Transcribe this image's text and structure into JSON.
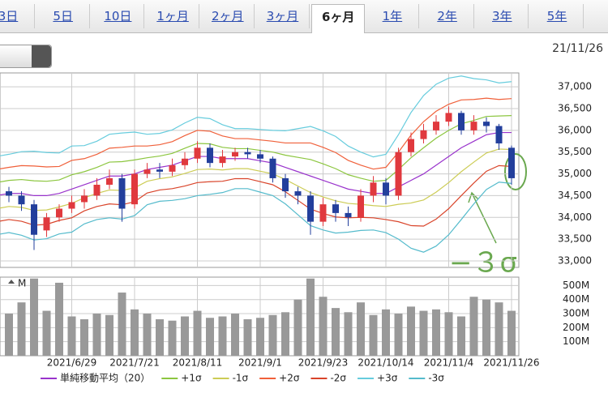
{
  "tabs": [
    "3日",
    "5日",
    "10日",
    "1ヶ月",
    "2ヶ月",
    "3ヶ月",
    "6ヶ月",
    "1年",
    "2年",
    "3年",
    "5年"
  ],
  "selected_tab": 6,
  "date": "21/11/26",
  "chart_data": {
    "type": "candlestick",
    "categories": [
      null,
      null,
      null,
      null,
      null,
      null,
      "2021/6/29",
      null,
      null,
      null,
      null,
      "2021/7/21",
      null,
      null,
      null,
      null,
      "2021/8/11",
      null,
      null,
      null,
      null,
      "2021/9/1",
      null,
      null,
      null,
      null,
      "2021/9/23",
      null,
      null,
      null,
      null,
      "2021/10/14",
      null,
      null,
      null,
      null,
      "2021/11/4",
      null,
      null,
      null,
      null,
      "2021/11/26"
    ],
    "open": [
      34500,
      34600,
      34500,
      34300,
      33700,
      34000,
      34200,
      34350,
      34500,
      34750,
      34900,
      34300,
      35000,
      35100,
      35050,
      35200,
      35350,
      35600,
      35250,
      35400,
      35500,
      35450,
      35350,
      34900,
      34600,
      34500,
      33900,
      34300,
      34100,
      34000,
      34500,
      34800,
      34500,
      35500,
      35800,
      36000,
      36200,
      36400,
      36000,
      36200,
      36100,
      35600
    ],
    "high": [
      34750,
      34700,
      34600,
      34400,
      34100,
      34300,
      34500,
      34650,
      34900,
      35100,
      35000,
      35100,
      35250,
      35250,
      35350,
      35500,
      35750,
      35700,
      35550,
      35600,
      35600,
      35550,
      35400,
      35000,
      34700,
      34600,
      34450,
      34400,
      34250,
      34650,
      34950,
      34900,
      35600,
      35950,
      36150,
      36350,
      36550,
      36450,
      36350,
      36300,
      36150,
      35650
    ],
    "low": [
      34400,
      34350,
      34150,
      33250,
      33550,
      33900,
      34100,
      34200,
      34400,
      34650,
      33900,
      34200,
      34900,
      34900,
      34950,
      35100,
      35250,
      35150,
      35150,
      35300,
      35350,
      35250,
      34800,
      34450,
      34300,
      33600,
      33800,
      33900,
      33800,
      33900,
      34350,
      34300,
      34400,
      35400,
      35700,
      35900,
      36100,
      35900,
      35900,
      35950,
      35550,
      34750
    ],
    "close": [
      34600,
      34500,
      34300,
      33600,
      34000,
      34200,
      34350,
      34500,
      34750,
      34900,
      34200,
      35000,
      35100,
      35050,
      35200,
      35350,
      35600,
      35250,
      35400,
      35500,
      35450,
      35350,
      34900,
      34600,
      34500,
      33900,
      34300,
      34100,
      34000,
      34500,
      34800,
      34500,
      35500,
      35800,
      36000,
      36200,
      36400,
      36000,
      36200,
      36100,
      35700,
      34900
    ],
    "up_color": "#e0393e",
    "down_color": "#233f9c",
    "series": [
      {
        "name": "単純移動平均（20）",
        "color": "#9933cc",
        "values": [
          34500,
          34550,
          34550,
          34500,
          34500,
          34550,
          34650,
          34750,
          34850,
          34950,
          34950,
          35000,
          35100,
          35150,
          35200,
          35300,
          35400,
          35400,
          35350,
          35350,
          35350,
          35300,
          35250,
          35150,
          35050,
          34950,
          34850,
          34750,
          34650,
          34600,
          34550,
          34550,
          34700,
          34850,
          35000,
          35200,
          35400,
          35600,
          35750,
          35900,
          35950,
          35950
        ]
      },
      {
        "name": "+1σ",
        "color": "#8cc63f",
        "values": [
          34800,
          34850,
          34870,
          34840,
          34830,
          34860,
          34980,
          35050,
          35150,
          35270,
          35280,
          35320,
          35370,
          35410,
          35470,
          35590,
          35700,
          35690,
          35610,
          35580,
          35580,
          35540,
          35500,
          35430,
          35380,
          35330,
          35230,
          35120,
          34980,
          34900,
          34830,
          34850,
          35100,
          35370,
          35600,
          35820,
          36000,
          36150,
          36230,
          36320,
          36330,
          36340
        ]
      },
      {
        "name": "-1σ",
        "color": "#cccc55",
        "values": [
          34200,
          34250,
          34230,
          34160,
          34170,
          34240,
          34320,
          34450,
          34550,
          34630,
          34620,
          34680,
          34830,
          34890,
          34930,
          35010,
          35100,
          35110,
          35090,
          35120,
          35120,
          35060,
          35000,
          34870,
          34720,
          34570,
          34470,
          34380,
          34320,
          34300,
          34270,
          34250,
          34300,
          34330,
          34400,
          34580,
          34800,
          35050,
          35270,
          35480,
          35570,
          35560
        ]
      },
      {
        "name": "+2σ",
        "color": "#f0603a",
        "values": [
          35100,
          35150,
          35190,
          35180,
          35160,
          35170,
          35310,
          35350,
          35450,
          35590,
          35610,
          35640,
          35640,
          35670,
          35740,
          35880,
          36000,
          35980,
          35870,
          35810,
          35810,
          35780,
          35750,
          35710,
          35710,
          35710,
          35610,
          35490,
          35310,
          35200,
          35110,
          35150,
          35500,
          35890,
          36200,
          36440,
          36600,
          36700,
          36710,
          36740,
          36710,
          36730
        ]
      },
      {
        "name": "-2σ",
        "color": "#d9442a",
        "values": [
          33900,
          33950,
          33910,
          33820,
          33840,
          33930,
          33990,
          34150,
          34250,
          34310,
          34290,
          34360,
          34560,
          34630,
          34660,
          34720,
          34800,
          34820,
          34830,
          34890,
          34890,
          34820,
          34750,
          34590,
          34390,
          34190,
          34090,
          34010,
          33990,
          34000,
          33990,
          33950,
          33900,
          33810,
          33800,
          33960,
          34200,
          34500,
          34790,
          35060,
          35190,
          35170
        ]
      },
      {
        "name": "+3σ",
        "color": "#66ccdd",
        "values": [
          35400,
          35450,
          35510,
          35520,
          35490,
          35480,
          35640,
          35650,
          35750,
          35910,
          35940,
          35960,
          35910,
          35930,
          36010,
          36170,
          36300,
          36270,
          36130,
          36040,
          36040,
          36020,
          36000,
          35990,
          36040,
          36090,
          35990,
          35860,
          35640,
          35500,
          35390,
          35450,
          35900,
          36410,
          36800,
          37060,
          37200,
          37250,
          37190,
          37160,
          37090,
          37120
        ]
      },
      {
        "name": "-3σ",
        "color": "#55bbcc",
        "values": [
          33600,
          33650,
          33590,
          33480,
          33510,
          33620,
          33660,
          33850,
          33950,
          33990,
          33960,
          34040,
          34290,
          34370,
          34390,
          34430,
          34500,
          34530,
          34570,
          34660,
          34660,
          34580,
          34500,
          34310,
          34060,
          33810,
          33710,
          33640,
          33660,
          33700,
          33710,
          33650,
          33500,
          33290,
          33200,
          33340,
          33600,
          33950,
          34310,
          34640,
          34810,
          34780
        ]
      }
    ],
    "ylim": [
      32850,
      37320
    ],
    "yticks": [
      {
        "value": 33000,
        "label": "33,000"
      },
      {
        "value": 33500,
        "label": "33,500"
      },
      {
        "value": 34000,
        "label": "34,000"
      },
      {
        "value": 34500,
        "label": "34,500"
      },
      {
        "value": 35000,
        "label": "35,000"
      },
      {
        "value": 35500,
        "label": "35,500"
      },
      {
        "value": 36000,
        "label": "36,000"
      },
      {
        "value": 36500,
        "label": "36,500"
      },
      {
        "value": 37000,
        "label": "37,000"
      }
    ],
    "grid": true,
    "volume": {
      "label": "M",
      "color": "#999999",
      "values": [
        270,
        300,
        380,
        550,
        320,
        520,
        280,
        260,
        300,
        290,
        450,
        330,
        300,
        260,
        250,
        280,
        320,
        270,
        280,
        300,
        260,
        270,
        290,
        310,
        400,
        550,
        420,
        340,
        310,
        380,
        290,
        330,
        300,
        350,
        320,
        330,
        310,
        280,
        420,
        400,
        380,
        320
      ],
      "ylim": [
        0,
        560
      ],
      "yticks": [
        {
          "value": 100,
          "label": "100M"
        },
        {
          "value": 200,
          "label": "200M"
        },
        {
          "value": 300,
          "label": "300M"
        },
        {
          "value": 400,
          "label": "400M"
        },
        {
          "value": 500,
          "label": "500M"
        }
      ]
    },
    "annotation": "−３σ"
  }
}
